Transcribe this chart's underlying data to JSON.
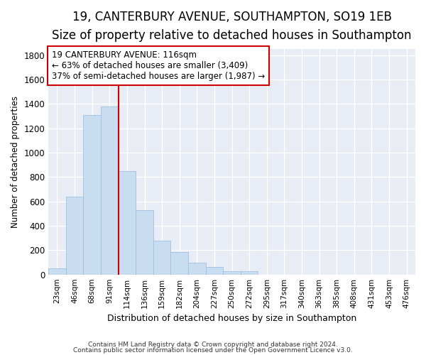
{
  "title": "19, CANTERBURY AVENUE, SOUTHAMPTON, SO19 1EB",
  "subtitle": "Size of property relative to detached houses in Southampton",
  "xlabel": "Distribution of detached houses by size in Southampton",
  "ylabel": "Number of detached properties",
  "categories": [
    "23sqm",
    "46sqm",
    "68sqm",
    "91sqm",
    "114sqm",
    "136sqm",
    "159sqm",
    "182sqm",
    "204sqm",
    "227sqm",
    "250sqm",
    "272sqm",
    "295sqm",
    "317sqm",
    "340sqm",
    "363sqm",
    "385sqm",
    "408sqm",
    "431sqm",
    "453sqm",
    "476sqm"
  ],
  "bar_heights": [
    50,
    640,
    1310,
    1380,
    850,
    530,
    280,
    185,
    100,
    65,
    30,
    30,
    0,
    0,
    0,
    0,
    0,
    0,
    0,
    0,
    0
  ],
  "bar_color": "#c9ddf0",
  "bar_edge_color": "#a0bfdf",
  "vline_color": "#cc0000",
  "annotation_line1": "19 CANTERBURY AVENUE: 116sqm",
  "annotation_line2": "← 63% of detached houses are smaller (3,409)",
  "annotation_line3": "37% of semi-detached houses are larger (1,987) →",
  "annotation_box_color": "#ffffff",
  "annotation_box_edge": "#cc0000",
  "ylim": [
    0,
    1850
  ],
  "yticks": [
    0,
    200,
    400,
    600,
    800,
    1000,
    1200,
    1400,
    1600,
    1800
  ],
  "footer1": "Contains HM Land Registry data © Crown copyright and database right 2024.",
  "footer2": "Contains public sector information licensed under the Open Government Licence v3.0.",
  "bg_color": "#ffffff",
  "plot_bg_color": "#e8edf5",
  "grid_color": "#ffffff",
  "title_fontsize": 12,
  "subtitle_fontsize": 10,
  "vline_xindex": 3.5
}
